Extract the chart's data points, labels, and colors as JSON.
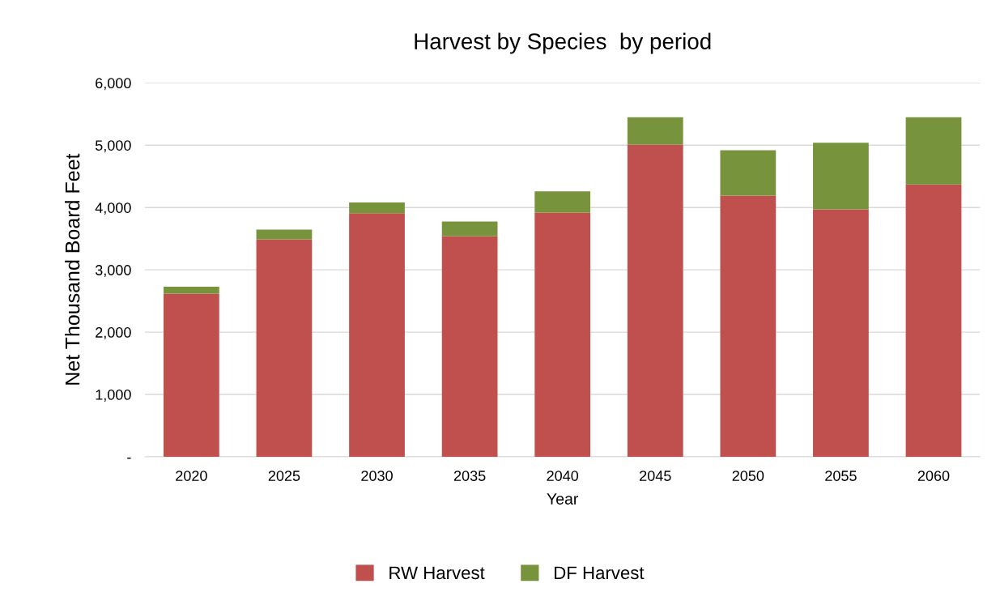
{
  "chart_data": {
    "type": "bar",
    "stacked": true,
    "title": "Harvest by Species  by period",
    "xlabel": "Year",
    "ylabel": "Net Thousand Board Feet",
    "categories": [
      "2020",
      "2025",
      "2030",
      "2035",
      "2040",
      "2045",
      "2050",
      "2055",
      "2060"
    ],
    "series": [
      {
        "name": "RW Harvest",
        "color": "#c0504d",
        "values": [
          2620,
          3490,
          3910,
          3540,
          3920,
          5010,
          4190,
          3970,
          4370
        ]
      },
      {
        "name": "DF Harvest",
        "color": "#77933c",
        "values": [
          110,
          155,
          170,
          235,
          340,
          440,
          730,
          1070,
          1080
        ]
      }
    ],
    "ylim": [
      0,
      6000
    ],
    "yticks": [
      {
        "value": 0,
        "label": "-"
      },
      {
        "value": 1000,
        "label": "1,000"
      },
      {
        "value": 2000,
        "label": "2,000"
      },
      {
        "value": 3000,
        "label": "3,000"
      },
      {
        "value": 4000,
        "label": "4,000"
      },
      {
        "value": 5000,
        "label": "5,000"
      },
      {
        "value": 6000,
        "label": "6,000"
      }
    ],
    "grid": "y",
    "legend": "bottom"
  }
}
